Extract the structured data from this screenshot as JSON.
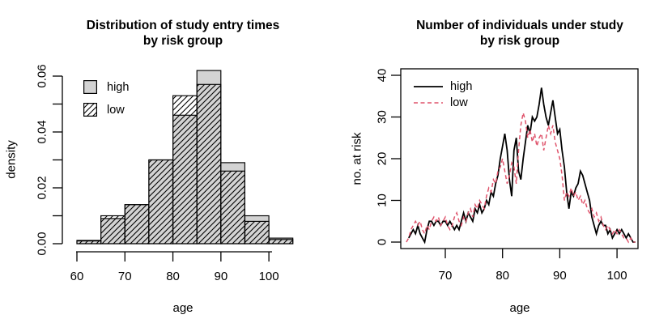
{
  "colors": {
    "background": "#ffffff",
    "axis": "#000000",
    "high_fill": "#d3d3d3",
    "low_line": "#df536b",
    "high_line": "#000000"
  },
  "chart_data": [
    {
      "type": "bar",
      "variant": "overlaid-histogram",
      "title_line1": "Distribution of study entry times",
      "title_line2": "by risk group",
      "xlabel": "age",
      "ylabel": "density",
      "xlim": [
        60,
        105
      ],
      "ylim": [
        0,
        0.06
      ],
      "grid": false,
      "legend_position": "top-left",
      "legend": [
        "high",
        "low"
      ],
      "bin_edges": [
        60,
        65,
        70,
        75,
        80,
        85,
        90,
        95,
        100,
        105
      ],
      "x_ticks": [
        {
          "v": 60,
          "label": "60"
        },
        {
          "v": 70,
          "label": "70"
        },
        {
          "v": 80,
          "label": "80"
        },
        {
          "v": 90,
          "label": "90"
        },
        {
          "v": 100,
          "label": "100"
        }
      ],
      "y_ticks": [
        {
          "v": 0,
          "label": "0.00"
        },
        {
          "v": 0.01
        },
        {
          "v": 0.02,
          "label": "0.02"
        },
        {
          "v": 0.03
        },
        {
          "v": 0.04,
          "label": "0.04"
        },
        {
          "v": 0.05
        },
        {
          "v": 0.06,
          "label": "0.06"
        }
      ],
      "series": [
        {
          "name": "high",
          "style": "filled",
          "fill_color": "#d3d3d3",
          "densities": [
            0.001,
            0.009,
            0.014,
            0.03,
            0.046,
            0.062,
            0.029,
            0.01,
            0.002
          ]
        },
        {
          "name": "low",
          "style": "hatched",
          "hatch_angle": 45,
          "densities": [
            0.0012,
            0.01,
            0.014,
            0.03,
            0.053,
            0.057,
            0.026,
            0.008,
            0.0015
          ]
        }
      ]
    },
    {
      "type": "line",
      "variant": "risk-set-size",
      "title_line1": "Number of individuals under study",
      "title_line2": "by risk group",
      "xlabel": "age",
      "ylabel": "no. at risk",
      "xlim": [
        62.2,
        104
      ],
      "ylim": [
        0,
        40
      ],
      "grid": false,
      "boxed": true,
      "legend_position": "top-left",
      "legend": [
        "high",
        "low"
      ],
      "x_ticks": [
        {
          "v": 70,
          "label": "70"
        },
        {
          "v": 80,
          "label": "80"
        },
        {
          "v": 90,
          "label": "90"
        },
        {
          "v": 100,
          "label": "100"
        }
      ],
      "y_ticks": [
        {
          "v": 0,
          "label": "0"
        },
        {
          "v": 10,
          "label": "10"
        },
        {
          "v": 20,
          "label": "20"
        },
        {
          "v": 30,
          "label": "30"
        },
        {
          "v": 40,
          "label": "40"
        }
      ],
      "series": [
        {
          "name": "high",
          "color": "#000000",
          "line_style": "solid",
          "x_start": 63.6,
          "x_step": 0.4,
          "y": [
            1,
            2,
            3,
            2,
            4,
            2,
            1,
            0,
            3,
            5,
            5,
            4,
            5,
            5,
            4,
            5,
            5,
            4,
            5,
            4,
            3,
            4,
            3,
            5,
            7,
            5,
            7,
            6,
            5,
            8,
            7,
            9,
            7,
            8,
            10,
            9,
            12,
            11,
            14,
            16,
            20,
            23,
            26,
            22,
            15,
            11,
            22,
            25,
            17,
            15,
            20,
            24,
            28,
            26,
            30,
            29,
            30,
            33,
            37,
            33,
            30,
            28,
            31,
            34,
            30,
            26,
            27,
            22,
            18,
            12,
            8,
            12,
            11,
            13,
            14,
            17,
            16,
            14,
            12,
            10,
            6,
            4,
            2,
            4,
            5,
            4,
            4,
            2,
            3,
            1,
            2,
            3,
            2,
            3,
            2,
            1,
            2,
            1,
            0,
            0
          ]
        },
        {
          "name": "low",
          "color": "#df536b",
          "line_style": "dashed",
          "x_start": 63.2,
          "x_step": 0.4,
          "y": [
            0,
            1,
            3,
            4,
            5,
            4,
            5,
            3,
            2,
            4,
            3,
            5,
            6,
            5,
            6,
            4,
            5,
            6,
            4,
            3,
            4,
            6,
            7,
            5,
            4,
            6,
            5,
            7,
            8,
            6,
            9,
            8,
            10,
            9,
            8,
            11,
            13,
            12,
            15,
            14,
            17,
            18,
            20,
            17,
            14,
            16,
            19,
            18,
            14,
            22,
            28,
            31,
            29,
            25,
            27,
            24,
            26,
            23,
            25,
            26,
            22,
            25,
            28,
            26,
            28,
            24,
            22,
            20,
            16,
            10,
            12,
            11,
            13,
            11,
            12,
            10,
            11,
            9,
            10,
            8,
            7,
            8,
            6,
            7,
            5,
            6,
            4,
            3,
            4,
            3,
            2,
            3,
            2,
            3,
            2,
            1,
            1,
            0,
            1,
            0,
            0
          ]
        }
      ]
    }
  ]
}
